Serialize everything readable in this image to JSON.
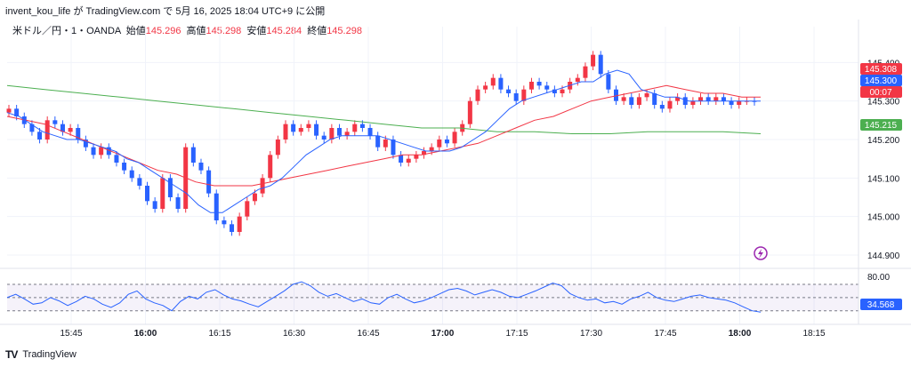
{
  "header": {
    "snapshot_text": "invent_kou_life が TradingView.com で 5月 16, 2025 18:04 UTC+9 に公開"
  },
  "legend": {
    "symbol": "米ドル／円・1・OANDA",
    "open_label": "始値",
    "open": "145.296",
    "high_label": "高値",
    "high": "145.298",
    "low_label": "安値",
    "low": "145.284",
    "close_label": "終値",
    "close": "145.298"
  },
  "footer": {
    "brand": "TradingView"
  },
  "colors": {
    "up": "#f23645",
    "down": "#2962ff",
    "ema_fast": "#2962ff",
    "ema_mid": "#f23645",
    "ema_slow": "#4caf50",
    "rsi": "#2962ff"
  },
  "chart_data": {
    "type": "candlestick",
    "price_axis": {
      "ticks": [
        "145.400",
        "145.300",
        "145.200",
        "145.100",
        "145.000",
        "144.900"
      ],
      "ylim": [
        144.87,
        145.47
      ]
    },
    "time_axis": {
      "ticks": [
        "15:45",
        "16:00",
        "16:15",
        "16:30",
        "16:45",
        "17:00",
        "17:15",
        "17:30",
        "17:45",
        "18:00",
        "18:15"
      ]
    },
    "price_tags": [
      {
        "text": "145.308",
        "color": "#f23645"
      },
      {
        "text": "145.300",
        "color": "#2962ff"
      },
      {
        "text": "00:07",
        "color": "#f23645"
      },
      {
        "text": "145.215",
        "color": "#4caf50"
      }
    ],
    "closes": [
      145.28,
      145.26,
      145.24,
      145.22,
      145.2,
      145.25,
      145.24,
      145.22,
      145.23,
      145.2,
      145.18,
      145.16,
      145.18,
      145.16,
      145.14,
      145.12,
      145.1,
      145.08,
      145.04,
      145.02,
      145.1,
      145.05,
      145.02,
      145.18,
      145.14,
      145.12,
      145.06,
      144.99,
      144.98,
      144.96,
      145.0,
      145.04,
      145.06,
      145.1,
      145.16,
      145.2,
      145.24,
      145.22,
      145.23,
      145.24,
      145.21,
      145.2,
      145.23,
      145.21,
      145.22,
      145.24,
      145.23,
      145.21,
      145.18,
      145.2,
      145.16,
      145.14,
      145.15,
      145.16,
      145.17,
      145.18,
      145.2,
      145.19,
      145.22,
      145.24,
      145.3,
      145.33,
      145.34,
      145.36,
      145.33,
      145.32,
      145.3,
      145.33,
      145.35,
      145.34,
      145.33,
      145.32,
      145.33,
      145.35,
      145.36,
      145.39,
      145.42,
      145.37,
      145.33,
      145.3,
      145.31,
      145.29,
      145.31,
      145.32,
      145.29,
      145.28,
      145.3,
      145.31,
      145.29,
      145.3,
      145.31,
      145.3,
      145.31,
      145.3,
      145.29,
      145.3,
      145.3,
      145.298
    ],
    "ema_fast": [
      145.27,
      145.26,
      145.24,
      145.22,
      145.21,
      145.2,
      145.2,
      145.19,
      145.18,
      145.17,
      145.15,
      145.14,
      145.12,
      145.1,
      145.08,
      145.06,
      145.03,
      145.01,
      145.01,
      145.03,
      145.05,
      145.07,
      145.08,
      145.1,
      145.13,
      145.16,
      145.18,
      145.2,
      145.21,
      145.21,
      145.21,
      145.21,
      145.2,
      145.19,
      145.18,
      145.17,
      145.17,
      145.17,
      145.18,
      145.2,
      145.22,
      145.25,
      145.28,
      145.3,
      145.31,
      145.32,
      145.33,
      145.34,
      145.35,
      145.35,
      145.37,
      145.38,
      145.37,
      145.33,
      145.32,
      145.31,
      145.31,
      145.3,
      145.3,
      145.3,
      145.3,
      145.3,
      145.3,
      145.3
    ],
    "ema_mid": [
      145.26,
      145.25,
      145.24,
      145.22,
      145.2,
      145.18,
      145.16,
      145.14,
      145.12,
      145.11,
      145.09,
      145.08,
      145.08,
      145.08,
      145.09,
      145.1,
      145.11,
      145.12,
      145.13,
      145.14,
      145.15,
      145.16,
      145.16,
      145.17,
      145.18,
      145.19,
      145.21,
      145.23,
      145.25,
      145.26,
      145.28,
      145.3,
      145.31,
      145.32,
      145.33,
      145.34,
      145.33,
      145.32,
      145.32,
      145.31,
      145.31
    ],
    "ema_slow": [
      145.34,
      145.33,
      145.32,
      145.31,
      145.3,
      145.29,
      145.28,
      145.27,
      145.26,
      145.25,
      145.24,
      145.23,
      145.23,
      145.22,
      145.22,
      145.215,
      145.215,
      145.22,
      145.22,
      145.22,
      145.215
    ],
    "rsi": {
      "label": "80.00",
      "value": "34.568",
      "values": [
        50,
        55,
        48,
        40,
        42,
        50,
        45,
        38,
        44,
        52,
        48,
        40,
        35,
        42,
        55,
        60,
        48,
        42,
        38,
        30,
        44,
        52,
        48,
        58,
        62,
        54,
        48,
        45,
        40,
        36,
        44,
        52,
        60,
        70,
        74,
        68,
        58,
        52,
        56,
        50,
        44,
        48,
        42,
        40,
        50,
        55,
        48,
        42,
        45,
        50,
        56,
        62,
        64,
        60,
        54,
        58,
        62,
        58,
        52,
        50,
        55,
        60,
        66,
        72,
        68,
        56,
        50,
        46,
        48,
        42,
        44,
        40,
        48,
        52,
        58,
        50,
        46,
        44,
        48,
        52,
        54,
        50,
        48,
        46,
        42,
        36,
        30,
        28
      ]
    }
  }
}
